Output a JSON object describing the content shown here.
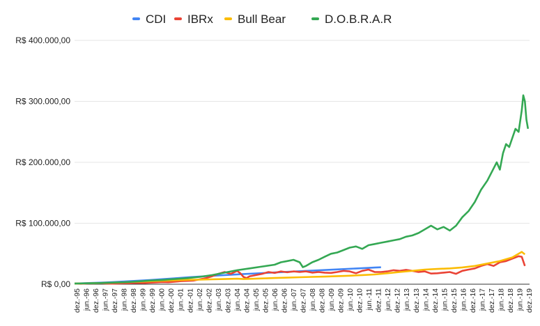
{
  "chart_data": {
    "type": "line",
    "title": "",
    "xlabel": "",
    "ylabel": "",
    "legend_position": "top-center",
    "grid": "horizontal",
    "ylim": [
      0,
      400000
    ],
    "y_ticks": [
      "R$ 0,00",
      "R$ 100.000,00",
      "R$ 200.000,00",
      "R$ 300.000,00",
      "R$ 400.000,00"
    ],
    "x_ticks": [
      "dez.-95",
      "jun.-96",
      "dez.-96",
      "jun.-97",
      "dez.-97",
      "jun.-98",
      "dez.-98",
      "jun.-99",
      "dez.-99",
      "jun.-00",
      "dez.-00",
      "jun.-01",
      "dez.-01",
      "jun.-02",
      "dez.-02",
      "jun.-03",
      "dez.-03",
      "jun.-04",
      "dez.-04",
      "jun.-05",
      "dez.-05",
      "jun.-06",
      "dez.-06",
      "jun.-07",
      "dez.-07",
      "jun.-08",
      "dez.-08",
      "jun.-09",
      "dez.-09",
      "jun.-10",
      "dez.-10",
      "jun.-11",
      "dez.-11",
      "jun.-12",
      "dez.-12",
      "jun.-13",
      "dez.-13",
      "jun.-14",
      "dez.-14",
      "jun.-15",
      "dez.-15",
      "jun.-16",
      "dez.-16",
      "jun.-17",
      "dez.-17",
      "jun.-18",
      "dez.-18",
      "jun.-19",
      "dez.-19"
    ],
    "series": [
      {
        "name": "CDI",
        "color": "#4285f4",
        "points": [
          [
            0,
            1000
          ],
          [
            4,
            1800
          ],
          [
            8,
            2500
          ],
          [
            12,
            3400
          ],
          [
            16,
            4500
          ],
          [
            20,
            5600
          ],
          [
            24,
            6900
          ],
          [
            28,
            8200
          ],
          [
            32,
            9700
          ],
          [
            36,
            11200
          ],
          [
            40,
            12600
          ],
          [
            44,
            13800
          ],
          [
            48,
            15000
          ],
          [
            50,
            15600
          ],
          [
            54,
            16700
          ],
          [
            58,
            17700
          ],
          [
            62,
            18800
          ],
          [
            66,
            19800
          ],
          [
            70,
            20800
          ],
          [
            74,
            21800
          ],
          [
            78,
            22800
          ],
          [
            82,
            23800
          ],
          [
            86,
            24800
          ],
          [
            90,
            25800
          ],
          [
            94,
            26800
          ],
          [
            96,
            27300
          ],
          [
            98,
            27800
          ]
        ]
      },
      {
        "name": "IBRx",
        "color": "#ea4335",
        "points": [
          [
            0,
            1000
          ],
          [
            2,
            800
          ],
          [
            4,
            1200
          ],
          [
            6,
            1400
          ],
          [
            8,
            1800
          ],
          [
            10,
            1200
          ],
          [
            12,
            900
          ],
          [
            14,
            1300
          ],
          [
            16,
            1500
          ],
          [
            18,
            1800
          ],
          [
            20,
            2200
          ],
          [
            22,
            2000
          ],
          [
            24,
            2500
          ],
          [
            26,
            3000
          ],
          [
            28,
            3500
          ],
          [
            30,
            3200
          ],
          [
            32,
            4000
          ],
          [
            34,
            5000
          ],
          [
            36,
            5500
          ],
          [
            38,
            6000
          ],
          [
            40,
            8000
          ],
          [
            42,
            10000
          ],
          [
            44,
            13000
          ],
          [
            46,
            17000
          ],
          [
            48,
            20000
          ],
          [
            50,
            17000
          ],
          [
            52,
            22000
          ],
          [
            53,
            18000
          ],
          [
            54,
            12000
          ],
          [
            55,
            10000
          ],
          [
            56,
            13000
          ],
          [
            58,
            15000
          ],
          [
            60,
            17000
          ],
          [
            62,
            20000
          ],
          [
            64,
            18500
          ],
          [
            66,
            21000
          ],
          [
            68,
            19500
          ],
          [
            70,
            21000
          ],
          [
            72,
            20000
          ],
          [
            74,
            21000
          ],
          [
            76,
            19000
          ],
          [
            78,
            20000
          ],
          [
            80,
            19000
          ],
          [
            82,
            18500
          ],
          [
            84,
            20000
          ],
          [
            86,
            22000
          ],
          [
            88,
            21000
          ],
          [
            90,
            18000
          ],
          [
            92,
            22000
          ],
          [
            94,
            24000
          ],
          [
            96,
            20000
          ],
          [
            98,
            20000
          ],
          [
            100,
            21000
          ],
          [
            102,
            23000
          ],
          [
            104,
            22000
          ],
          [
            106,
            23500
          ],
          [
            108,
            22000
          ],
          [
            110,
            20000
          ],
          [
            112,
            21000
          ],
          [
            114,
            17500
          ],
          [
            116,
            18000
          ],
          [
            118,
            19000
          ],
          [
            120,
            20000
          ],
          [
            122,
            17000
          ],
          [
            124,
            22000
          ],
          [
            126,
            24000
          ],
          [
            128,
            26000
          ],
          [
            130,
            30000
          ],
          [
            132,
            33000
          ],
          [
            134,
            30000
          ],
          [
            136,
            36000
          ],
          [
            138,
            38000
          ],
          [
            140,
            42000
          ],
          [
            142,
            46000
          ],
          [
            143,
            45000
          ],
          [
            144,
            30000
          ]
        ]
      },
      {
        "name": "Bull Bear",
        "color": "#fbbc04",
        "points": [
          [
            0,
            1000
          ],
          [
            4,
            1500
          ],
          [
            8,
            2000
          ],
          [
            12,
            2500
          ],
          [
            16,
            3200
          ],
          [
            20,
            4000
          ],
          [
            24,
            4800
          ],
          [
            28,
            5600
          ],
          [
            32,
            6400
          ],
          [
            36,
            7200
          ],
          [
            40,
            7600
          ],
          [
            44,
            8000
          ],
          [
            48,
            8500
          ],
          [
            52,
            9000
          ],
          [
            54,
            8500
          ],
          [
            56,
            8800
          ],
          [
            60,
            9500
          ],
          [
            64,
            10200
          ],
          [
            68,
            10800
          ],
          [
            72,
            11400
          ],
          [
            76,
            12000
          ],
          [
            80,
            12500
          ],
          [
            84,
            13200
          ],
          [
            88,
            14000
          ],
          [
            92,
            15000
          ],
          [
            96,
            16000
          ],
          [
            100,
            18000
          ],
          [
            104,
            20000
          ],
          [
            108,
            22000
          ],
          [
            112,
            24000
          ],
          [
            116,
            25000
          ],
          [
            120,
            26000
          ],
          [
            124,
            27500
          ],
          [
            128,
            30000
          ],
          [
            132,
            34000
          ],
          [
            136,
            38000
          ],
          [
            140,
            44000
          ],
          [
            142,
            50000
          ],
          [
            143,
            53000
          ],
          [
            144,
            49000
          ]
        ]
      },
      {
        "name": "D.O.B.R.A.R",
        "color": "#34a853",
        "points": [
          [
            0,
            1000
          ],
          [
            4,
            1500
          ],
          [
            8,
            2000
          ],
          [
            12,
            2600
          ],
          [
            16,
            3200
          ],
          [
            20,
            4500
          ],
          [
            24,
            6000
          ],
          [
            28,
            7000
          ],
          [
            32,
            8500
          ],
          [
            36,
            10000
          ],
          [
            40,
            12000
          ],
          [
            44,
            15000
          ],
          [
            48,
            19000
          ],
          [
            52,
            23000
          ],
          [
            56,
            26000
          ],
          [
            60,
            29000
          ],
          [
            64,
            32000
          ],
          [
            66,
            36000
          ],
          [
            68,
            38000
          ],
          [
            70,
            40000
          ],
          [
            72,
            36000
          ],
          [
            73,
            28000
          ],
          [
            74,
            30000
          ],
          [
            76,
            36000
          ],
          [
            78,
            40000
          ],
          [
            80,
            45000
          ],
          [
            82,
            50000
          ],
          [
            84,
            52000
          ],
          [
            86,
            56000
          ],
          [
            88,
            60000
          ],
          [
            90,
            62000
          ],
          [
            92,
            58000
          ],
          [
            94,
            64000
          ],
          [
            96,
            66000
          ],
          [
            98,
            68000
          ],
          [
            100,
            70000
          ],
          [
            102,
            72000
          ],
          [
            104,
            74000
          ],
          [
            106,
            78000
          ],
          [
            108,
            80000
          ],
          [
            110,
            84000
          ],
          [
            112,
            90000
          ],
          [
            114,
            96000
          ],
          [
            116,
            90000
          ],
          [
            118,
            94000
          ],
          [
            120,
            88000
          ],
          [
            122,
            96000
          ],
          [
            124,
            110000
          ],
          [
            126,
            120000
          ],
          [
            128,
            135000
          ],
          [
            130,
            155000
          ],
          [
            132,
            170000
          ],
          [
            134,
            190000
          ],
          [
            135,
            200000
          ],
          [
            136,
            188000
          ],
          [
            137,
            215000
          ],
          [
            138,
            230000
          ],
          [
            139,
            225000
          ],
          [
            140,
            240000
          ],
          [
            141,
            255000
          ],
          [
            142,
            250000
          ],
          [
            143,
            285000
          ],
          [
            143.5,
            310000
          ],
          [
            144,
            300000
          ],
          [
            144.5,
            270000
          ],
          [
            145,
            255000
          ]
        ]
      }
    ]
  }
}
